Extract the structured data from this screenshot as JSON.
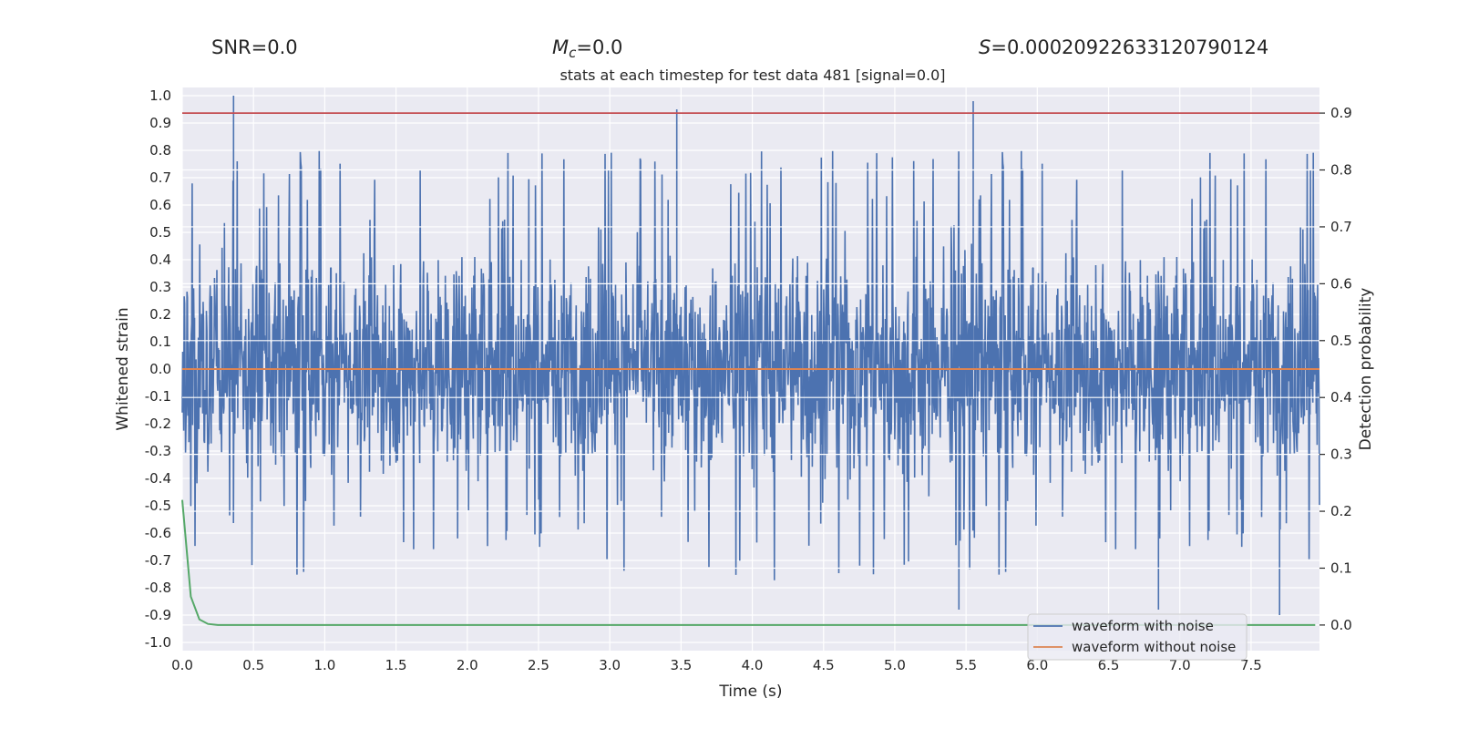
{
  "header": {
    "snr_text": "SNR=0.0",
    "mc_label": "M",
    "mc_sub": "c",
    "mc_value": "=0.0",
    "s_label": "S",
    "s_value": "=0.00020922633120790124"
  },
  "chart_data": {
    "type": "line",
    "title": "stats at each timestep for test data 481 [signal=0.0]",
    "xlabel": "Time (s)",
    "ylabel": "Whitened strain",
    "y2label": "Detection probability",
    "xlim": [
      0.0,
      7.98
    ],
    "ylim": [
      -1.03,
      1.03
    ],
    "y2lim": [
      -0.045,
      0.945
    ],
    "xticks": [
      "0.0",
      "0.5",
      "1.0",
      "1.5",
      "2.0",
      "2.5",
      "3.0",
      "3.5",
      "4.0",
      "4.5",
      "5.0",
      "5.5",
      "6.0",
      "6.5",
      "7.0",
      "7.5"
    ],
    "yticks": [
      "1.0",
      "0.9",
      "0.8",
      "0.7",
      "0.6",
      "0.5",
      "0.4",
      "0.3",
      "0.2",
      "0.1",
      "0.0",
      "-0.1",
      "-0.2",
      "-0.3",
      "-0.4",
      "-0.5",
      "-0.6",
      "-0.7",
      "-0.8",
      "-0.9",
      "-1.0"
    ],
    "y2ticks": [
      "0.9",
      "0.8",
      "0.7",
      "0.6",
      "0.5",
      "0.4",
      "0.3",
      "0.2",
      "0.1",
      "0.0"
    ],
    "threshold": {
      "axis": "right",
      "value": 0.9,
      "color": "#c44e52"
    },
    "series": [
      {
        "name": "waveform with noise",
        "color": "#4c72b0",
        "axis": "left",
        "description": "dense whitened noise, approx. within -0.9..1.0",
        "peaks": [
          [
            0.36,
            1.0
          ],
          [
            5.55,
            0.98
          ],
          [
            3.47,
            0.95
          ],
          [
            7.7,
            -0.9
          ],
          [
            5.45,
            -0.88
          ],
          [
            6.85,
            -0.88
          ],
          [
            7.0,
            -0.03
          ]
        ]
      },
      {
        "name": "waveform without noise",
        "color": "#dd8452",
        "axis": "left",
        "x": [
          0.0,
          7.98
        ],
        "y": [
          0.0,
          0.0
        ]
      },
      {
        "name": "detection probability",
        "color": "#55a868",
        "axis": "right",
        "x": [
          0.0,
          0.06,
          0.12,
          0.18,
          0.25,
          0.4,
          7.95
        ],
        "y": [
          0.22,
          0.05,
          0.01,
          0.002,
          0.0,
          0.0,
          0.0
        ]
      }
    ],
    "legend": {
      "position": "lower-right",
      "entries": [
        "waveform with noise",
        "waveform without noise"
      ]
    },
    "grid": true
  }
}
